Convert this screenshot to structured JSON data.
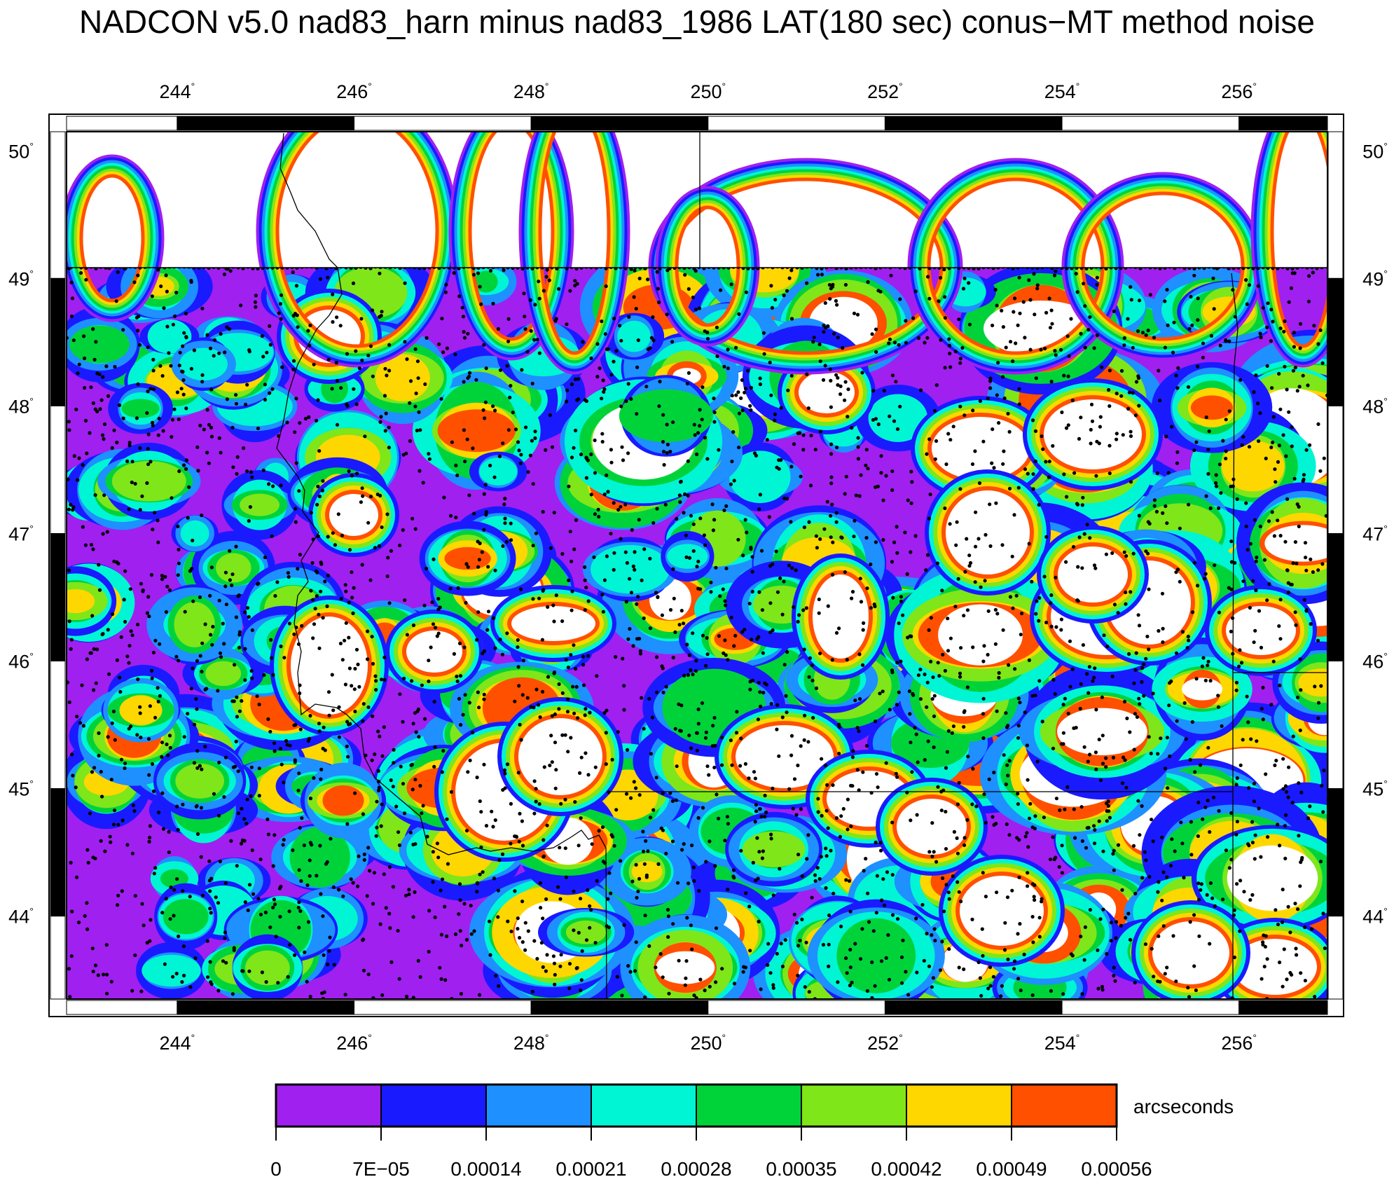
{
  "title": "NADCON v5.0 nad83_harn minus nad83_1986 LAT(180 sec) conus−MT method noise",
  "map": {
    "lon_range": [
      242.75,
      257.0
    ],
    "lat_range": [
      43.35,
      50.15
    ],
    "lon_ticks": [
      "244",
      "246",
      "248",
      "250",
      "252",
      "254",
      "256"
    ],
    "lat_ticks": [
      "50",
      "49",
      "48",
      "47",
      "46",
      "45",
      "44"
    ],
    "degree_symbol": "°",
    "frame_style": "alternating black-white bands"
  },
  "colorbar": {
    "unit": "arcseconds",
    "tick_labels": [
      "0",
      "7E−05",
      "0.00014",
      "0.00021",
      "0.00028",
      "0.00035",
      "0.00042",
      "0.00049",
      "0.00056"
    ],
    "colors": [
      "#a020f0",
      "#1a1aff",
      "#1e90ff",
      "#00f5d4",
      "#00d33a",
      "#7fe61a",
      "#ffd700",
      "#ff5000"
    ]
  },
  "legend_colors": {
    "background_noise": "#a020f0",
    "station_dots": "#000000",
    "above_range": "#ffffff"
  }
}
